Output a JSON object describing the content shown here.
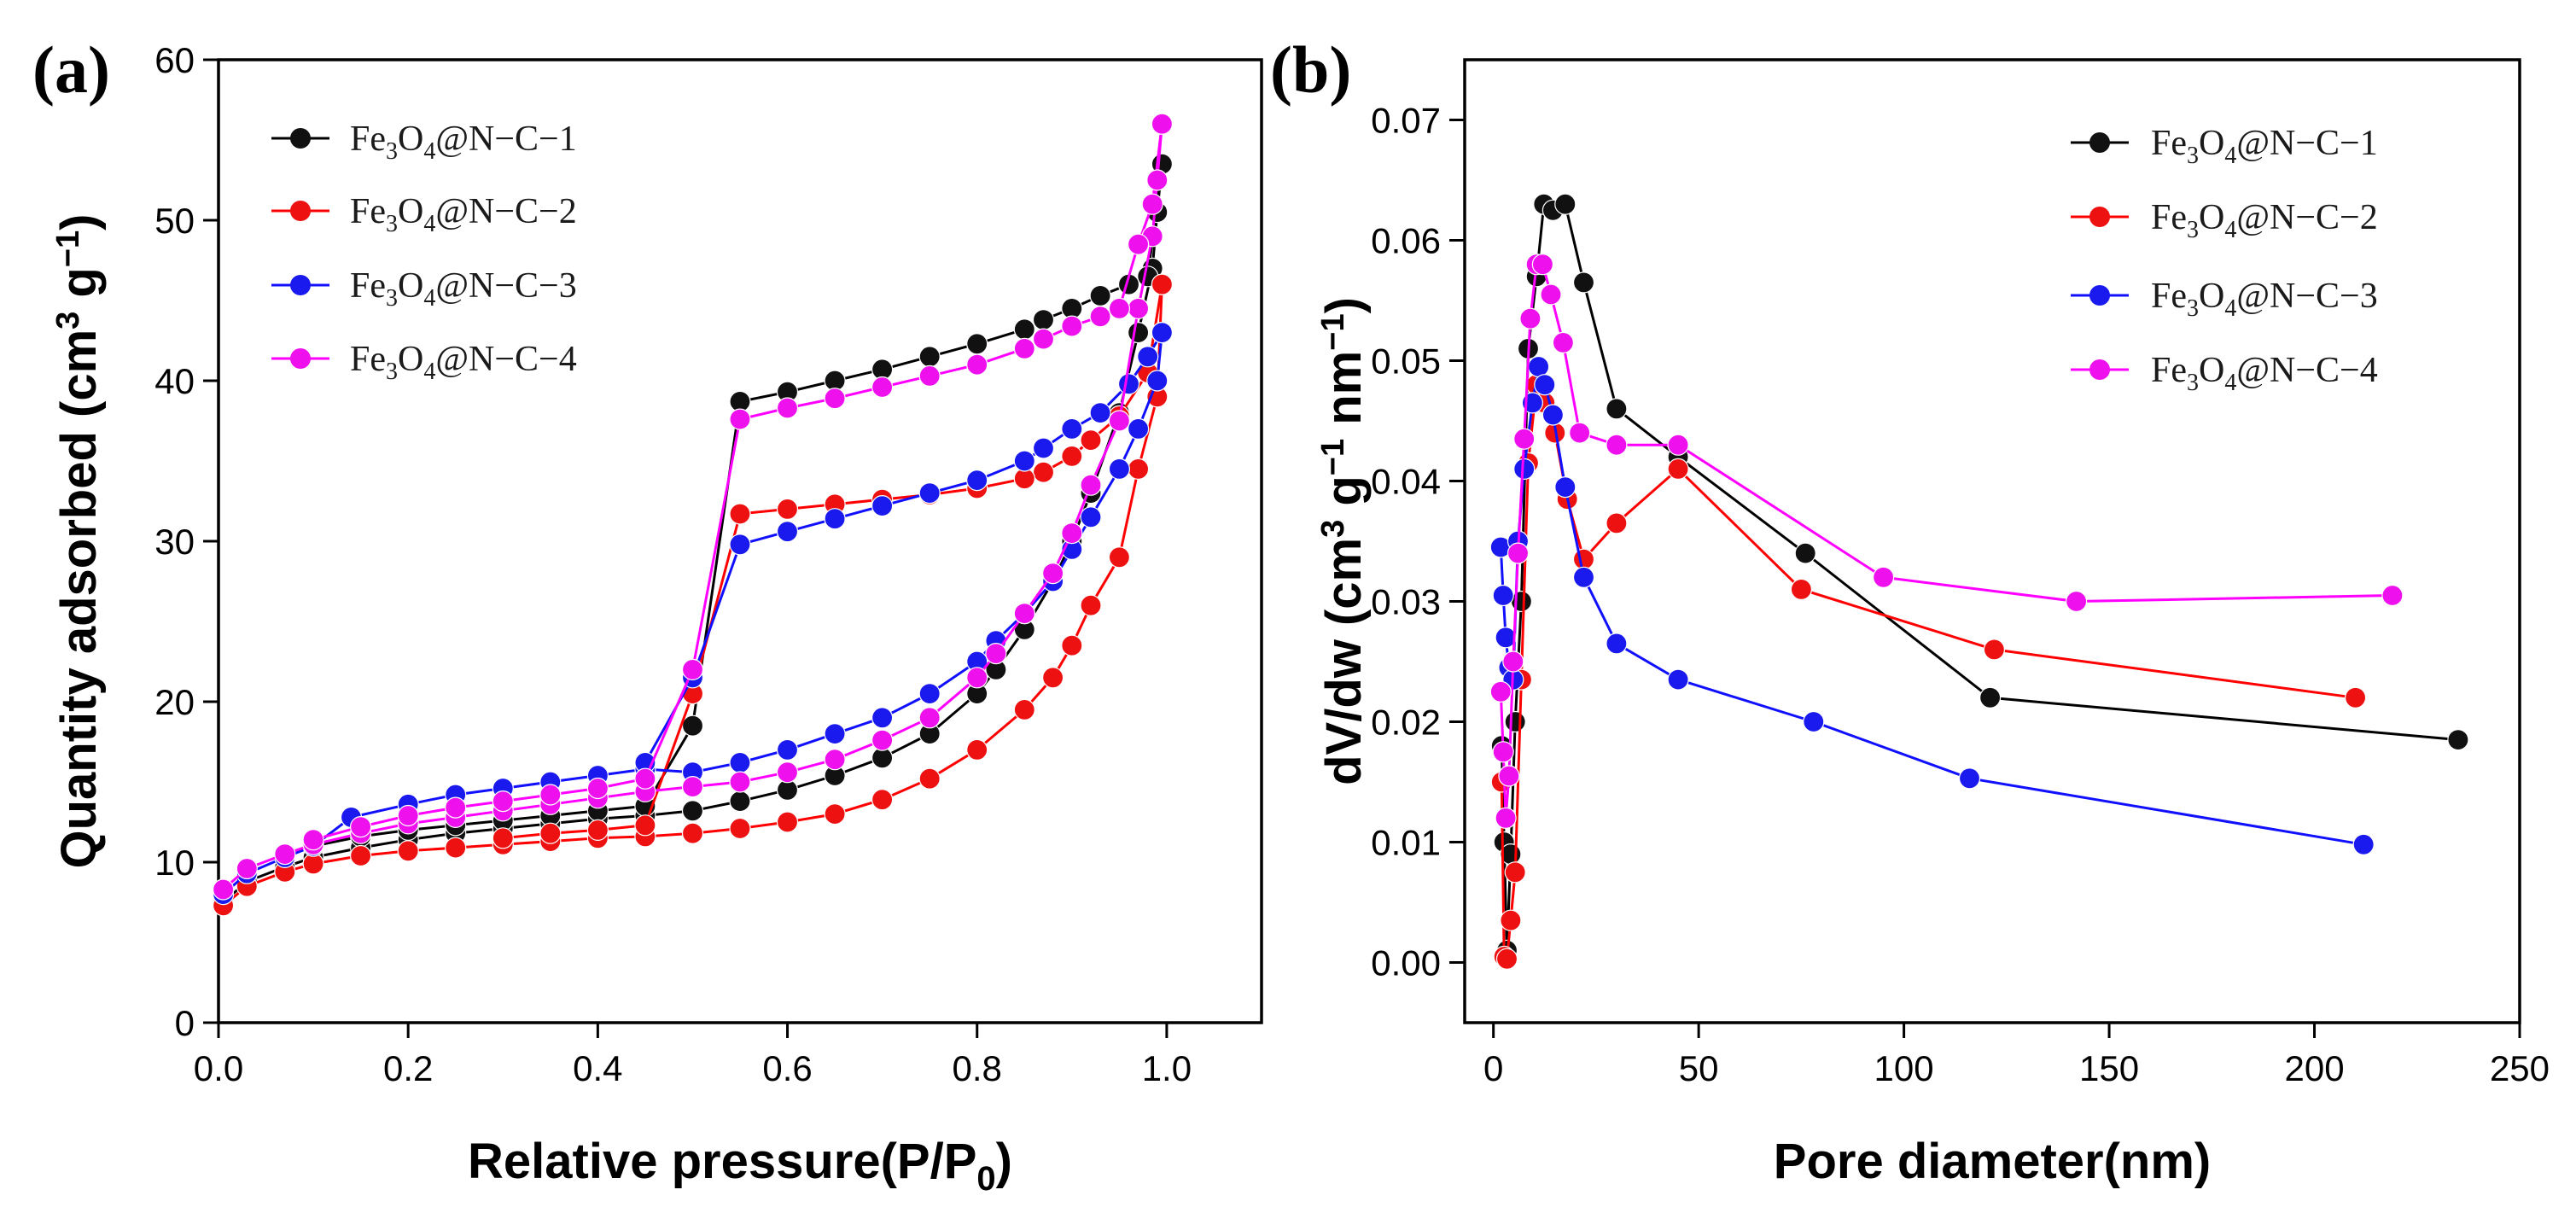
{
  "chart_data": [
    {
      "panel": "(a)",
      "type": "line",
      "xlabel": "Relative pressure(P/P",
      "xlabel_sub": "0",
      "xlabel_close": ")",
      "ylabel": "Quantity adsorbed (cm",
      "ylabel_sup1": "3",
      "ylabel_mid": " g",
      "ylabel_sup2": "−1",
      "ylabel_close": ")",
      "xlim": [
        0.0,
        1.1
      ],
      "ylim": [
        0,
        60
      ],
      "xticks": [
        "0.0",
        "0.2",
        "0.4",
        "0.6",
        "0.8",
        "1.0"
      ],
      "xtick_values": [
        0.0,
        0.2,
        0.4,
        0.6,
        0.8,
        1.0
      ],
      "yticks": [
        "0",
        "10",
        "20",
        "30",
        "40",
        "50",
        "60"
      ],
      "ytick_values": [
        0,
        10,
        20,
        30,
        40,
        50,
        60
      ],
      "legend_position": "top-left",
      "series": [
        {
          "name": "Fe3O4@N-C-1",
          "label": {
            "a": "Fe",
            "s1": "3",
            "b": "O",
            "s2": "4",
            "c": "@N−C−1"
          },
          "color": "#000000",
          "marker_color": "#111111",
          "adsorption": {
            "x": [
              0.005,
              0.03,
              0.07,
              0.1,
              0.15,
              0.2,
              0.25,
              0.3,
              0.35,
              0.4,
              0.45,
              0.5,
              0.55,
              0.6,
              0.65,
              0.7,
              0.75,
              0.8,
              0.82,
              0.85,
              0.88,
              0.9,
              0.92,
              0.95,
              0.97,
              0.985,
              0.99,
              0.995
            ],
            "y": [
              7.5,
              8.8,
              9.7,
              10.3,
              10.9,
              11.4,
              11.8,
              12.1,
              12.4,
              12.7,
              12.9,
              13.2,
              13.8,
              14.5,
              15.4,
              16.5,
              18.0,
              20.5,
              22.0,
              24.5,
              27.5,
              30.0,
              33.0,
              38.0,
              43.0,
              47.0,
              50.5,
              53.5
            ]
          },
          "desorption": {
            "x": [
              0.995,
              0.98,
              0.96,
              0.93,
              0.9,
              0.87,
              0.85,
              0.8,
              0.75,
              0.7,
              0.65,
              0.6,
              0.55,
              0.5,
              0.45,
              0.4,
              0.35,
              0.3,
              0.25,
              0.2,
              0.15,
              0.1
            ],
            "y": [
              53.5,
              46.5,
              46.0,
              45.3,
              44.5,
              43.8,
              43.2,
              42.3,
              41.5,
              40.7,
              40.0,
              39.3,
              38.7,
              18.5,
              13.5,
              13.2,
              12.9,
              12.6,
              12.3,
              12.0,
              11.6,
              11.0
            ]
          }
        },
        {
          "name": "Fe3O4@N-C-2",
          "label": {
            "a": "Fe",
            "s1": "3",
            "b": "O",
            "s2": "4",
            "c": "@N−C−2"
          },
          "color": "#ff0000",
          "marker_color": "#ee1111",
          "adsorption": {
            "x": [
              0.005,
              0.03,
              0.07,
              0.1,
              0.15,
              0.2,
              0.25,
              0.3,
              0.35,
              0.4,
              0.45,
              0.5,
              0.55,
              0.6,
              0.65,
              0.7,
              0.75,
              0.8,
              0.85,
              0.88,
              0.9,
              0.92,
              0.95,
              0.97,
              0.99,
              0.995
            ],
            "y": [
              7.3,
              8.5,
              9.4,
              9.9,
              10.4,
              10.7,
              10.9,
              11.1,
              11.3,
              11.5,
              11.6,
              11.8,
              12.1,
              12.5,
              13.0,
              13.9,
              15.2,
              17.0,
              19.5,
              21.5,
              23.5,
              26.0,
              29.0,
              34.5,
              39.0,
              46.0
            ]
          },
          "desorption": {
            "x": [
              0.995,
              0.98,
              0.95,
              0.92,
              0.9,
              0.87,
              0.85,
              0.8,
              0.75,
              0.7,
              0.65,
              0.6,
              0.55,
              0.5,
              0.45,
              0.4,
              0.35,
              0.3
            ],
            "y": [
              46.0,
              40.5,
              37.8,
              36.3,
              35.3,
              34.3,
              33.9,
              33.3,
              32.9,
              32.6,
              32.3,
              32.0,
              31.7,
              20.5,
              12.3,
              12.0,
              11.8,
              11.5
            ]
          }
        },
        {
          "name": "Fe3O4@N-C-3",
          "label": {
            "a": "Fe",
            "s1": "3",
            "b": "O",
            "s2": "4",
            "c": "@N−C−3"
          },
          "color": "#1010ff",
          "marker_color": "#1a1aee",
          "adsorption": {
            "x": [
              0.005,
              0.03,
              0.07,
              0.1,
              0.14,
              0.2,
              0.25,
              0.3,
              0.35,
              0.4,
              0.45,
              0.5,
              0.55,
              0.6,
              0.65,
              0.7,
              0.75,
              0.8,
              0.82,
              0.85,
              0.88,
              0.9,
              0.92,
              0.95,
              0.97,
              0.99,
              0.995
            ],
            "y": [
              8.0,
              9.3,
              10.3,
              11.0,
              12.8,
              13.6,
              14.2,
              14.6,
              15.0,
              15.4,
              15.8,
              15.6,
              16.2,
              17.0,
              18.0,
              19.0,
              20.5,
              22.5,
              23.8,
              25.5,
              27.5,
              29.5,
              31.5,
              34.5,
              37.0,
              40.0,
              43.0
            ]
          },
          "desorption": {
            "x": [
              0.995,
              0.98,
              0.96,
              0.93,
              0.9,
              0.87,
              0.85,
              0.8,
              0.75,
              0.7,
              0.65,
              0.6,
              0.55,
              0.5,
              0.45
            ],
            "y": [
              43.0,
              41.5,
              39.8,
              38.0,
              37.0,
              35.8,
              35.0,
              33.8,
              33.0,
              32.2,
              31.4,
              30.6,
              29.8,
              21.5,
              16.2
            ]
          }
        },
        {
          "name": "Fe3O4@N-C-4",
          "label": {
            "a": "Fe",
            "s1": "3",
            "b": "O",
            "s2": "4",
            "c": "@N−C−4"
          },
          "color": "#ff00ff",
          "marker_color": "#ee11ee",
          "adsorption": {
            "x": [
              0.005,
              0.03,
              0.07,
              0.1,
              0.15,
              0.2,
              0.25,
              0.3,
              0.35,
              0.4,
              0.45,
              0.5,
              0.55,
              0.6,
              0.65,
              0.7,
              0.75,
              0.8,
              0.82,
              0.85,
              0.88,
              0.9,
              0.92,
              0.95,
              0.97,
              0.985,
              0.99,
              0.995
            ],
            "y": [
              8.3,
              9.6,
              10.5,
              11.1,
              11.8,
              12.4,
              12.8,
              13.2,
              13.6,
              14.0,
              14.4,
              14.7,
              15.0,
              15.6,
              16.4,
              17.6,
              19.0,
              21.5,
              23.0,
              25.5,
              28.0,
              30.5,
              33.5,
              37.5,
              44.5,
              49.0,
              52.5,
              56.0
            ]
          },
          "desorption": {
            "x": [
              0.995,
              0.985,
              0.97,
              0.95,
              0.93,
              0.9,
              0.87,
              0.85,
              0.8,
              0.75,
              0.7,
              0.65,
              0.6,
              0.55,
              0.5,
              0.45,
              0.4,
              0.35,
              0.3,
              0.25,
              0.2,
              0.15,
              0.1
            ],
            "y": [
              56.0,
              51.0,
              48.5,
              44.5,
              44.0,
              43.4,
              42.6,
              42.0,
              41.0,
              40.3,
              39.6,
              38.9,
              38.3,
              37.6,
              22.0,
              15.2,
              14.6,
              14.2,
              13.8,
              13.4,
              12.9,
              12.2,
              11.4
            ]
          }
        }
      ]
    },
    {
      "panel": "(b)",
      "type": "line",
      "xlabel": "Pore diameter(nm)",
      "ylabel": "dV/dw  (cm",
      "ylabel_sup1": "3",
      "ylabel_mid": " g",
      "ylabel_sup2": "−1",
      "ylabel_mid2": " nm",
      "ylabel_sup3": "−1",
      "ylabel_close": ")",
      "xlim": [
        -7,
        250
      ],
      "ylim": [
        -0.005,
        0.075
      ],
      "xticks": [
        "0",
        "50",
        "100",
        "150",
        "200",
        "250"
      ],
      "xtick_values": [
        0,
        50,
        100,
        150,
        200,
        250
      ],
      "yticks": [
        "0.00",
        "0.01",
        "0.02",
        "0.03",
        "0.04",
        "0.05",
        "0.06",
        "0.07"
      ],
      "ytick_values": [
        0.0,
        0.01,
        0.02,
        0.03,
        0.04,
        0.05,
        0.06,
        0.07
      ],
      "legend_position": "top-right",
      "series": [
        {
          "name": "Fe3O4@N-C-1",
          "label": {
            "a": "Fe",
            "s1": "3",
            "b": "O",
            "s2": "4",
            "c": "@N−C−1"
          },
          "color": "#000000",
          "marker_color": "#111111",
          "x": [
            2.0,
            2.6,
            3.3,
            4.2,
            5.3,
            6.8,
            8.5,
            10.5,
            12.3,
            14.5,
            17.5,
            22.0,
            30.0,
            45.0,
            76.0,
            121.0,
            235.0
          ],
          "y": [
            0.018,
            0.01,
            0.001,
            0.009,
            0.02,
            0.03,
            0.051,
            0.057,
            0.063,
            0.0625,
            0.063,
            0.0565,
            0.046,
            0.042,
            0.034,
            0.022,
            0.0185
          ]
        },
        {
          "name": "Fe3O4@N-C-2",
          "label": {
            "a": "Fe",
            "s1": "3",
            "b": "O",
            "s2": "4",
            "c": "@N−C−2"
          },
          "color": "#ff0000",
          "marker_color": "#ee1111",
          "x": [
            2.0,
            2.6,
            3.3,
            4.2,
            5.3,
            6.8,
            8.5,
            10.5,
            12.5,
            15.0,
            18.0,
            22.0,
            30.0,
            45.0,
            75.0,
            122.0,
            210.0
          ],
          "y": [
            0.015,
            0.0005,
            0.0003,
            0.0035,
            0.0075,
            0.0235,
            0.0415,
            0.048,
            0.0465,
            0.044,
            0.0385,
            0.0335,
            0.0365,
            0.041,
            0.031,
            0.026,
            0.022
          ]
        },
        {
          "name": "Fe3O4@N-C-3",
          "label": {
            "a": "Fe",
            "s1": "3",
            "b": "O",
            "s2": "4",
            "c": "@N−C−3"
          },
          "color": "#1010ff",
          "marker_color": "#1a1aee",
          "x": [
            1.8,
            2.4,
            3.0,
            3.8,
            4.8,
            6.0,
            7.5,
            9.5,
            11.0,
            12.5,
            14.5,
            17.5,
            22.0,
            30.0,
            45.0,
            78.0,
            116.0,
            212.0
          ],
          "y": [
            0.0345,
            0.0305,
            0.027,
            0.0245,
            0.0235,
            0.035,
            0.041,
            0.0465,
            0.0495,
            0.048,
            0.0455,
            0.0395,
            0.032,
            0.0265,
            0.0235,
            0.02,
            0.0153,
            0.0098
          ]
        },
        {
          "name": "Fe3O4@N-C-4",
          "label": {
            "a": "Fe",
            "s1": "3",
            "b": "O",
            "s2": "4",
            "c": "@N−C−4"
          },
          "color": "#ff00ff",
          "marker_color": "#ee11ee",
          "x": [
            1.8,
            2.4,
            3.0,
            3.8,
            4.8,
            6.0,
            7.5,
            9.0,
            10.5,
            12.0,
            14.0,
            17.0,
            21.0,
            30.0,
            45.0,
            95.0,
            142.0,
            219.0
          ],
          "y": [
            0.0225,
            0.0175,
            0.012,
            0.0155,
            0.025,
            0.034,
            0.0435,
            0.0535,
            0.058,
            0.058,
            0.0555,
            0.0515,
            0.044,
            0.043,
            0.043,
            0.032,
            0.03,
            0.0305
          ]
        }
      ]
    }
  ]
}
